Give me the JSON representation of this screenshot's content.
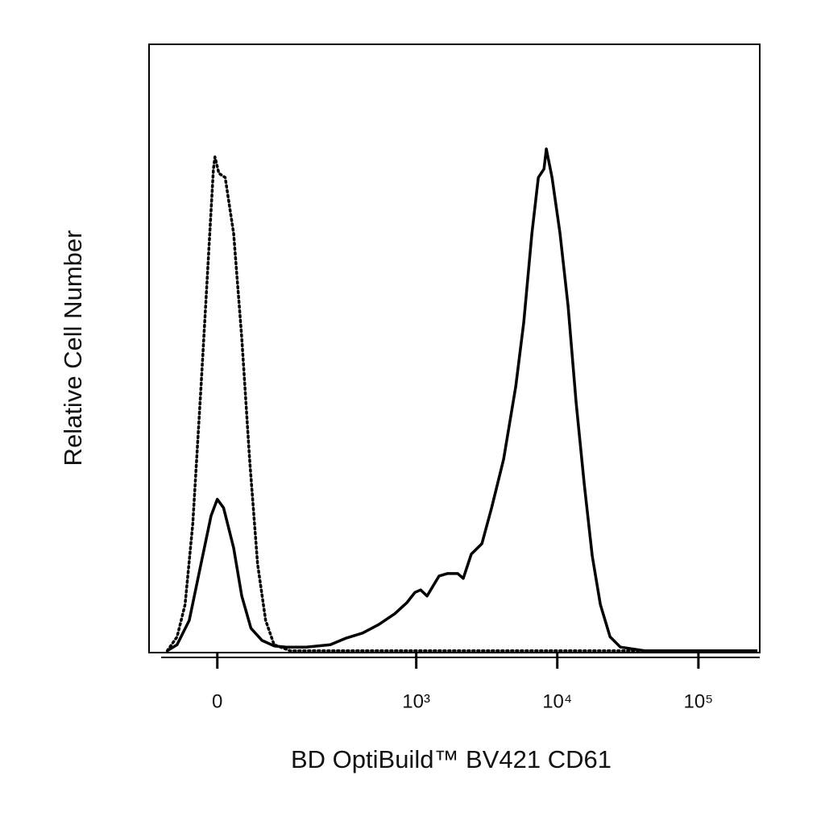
{
  "chart_data": {
    "type": "line",
    "xlabel": "BD OptiBuild™ BV421 CD61",
    "ylabel": "Relative Cell Number",
    "xscale": {
      "type": "asinh",
      "cofactor": 78
    },
    "xlim": [
      -106,
      272000
    ],
    "ylim": [
      0,
      100
    ],
    "xticks": [
      0,
      {
        "value": 1000,
        "label": "10³"
      },
      {
        "value": 10000,
        "label": "10⁴"
      },
      {
        "value": 100000,
        "label": "10⁵"
      }
    ],
    "series": [
      {
        "color": "#000000",
        "style": "solid",
        "x": [
          -71,
          -55,
          -37,
          -21,
          -8,
          0,
          8,
          21,
          32,
          45,
          62,
          83,
          107,
          157,
          240,
          316,
          413,
          539,
          704,
          858,
          979,
          1074,
          1193,
          1452,
          1660,
          1968,
          2156,
          2458,
          2922,
          3424,
          4168,
          5073,
          5788,
          6606,
          7340,
          8044,
          8365,
          9174,
          10460,
          11930,
          13600,
          15520,
          17700,
          20200,
          23650,
          28000,
          41650,
          261800
        ],
        "values": [
          0.3,
          1.3,
          5.3,
          14.6,
          22.5,
          25.2,
          23.8,
          17.2,
          9.3,
          4.0,
          2.0,
          1.1,
          0.9,
          0.9,
          1.3,
          2.4,
          3.2,
          4.6,
          6.4,
          8.2,
          9.9,
          10.3,
          9.3,
          12.6,
          13.0,
          13.0,
          12.2,
          16.2,
          17.9,
          23.8,
          31.8,
          43.7,
          54.3,
          68.9,
          78.1,
          79.5,
          82.8,
          78.1,
          68.9,
          57.0,
          41.1,
          27.8,
          15.9,
          7.9,
          2.6,
          0.9,
          0.3,
          0.3
        ]
      },
      {
        "color": "#000000",
        "style": "dotted",
        "x": [
          -71,
          -55,
          -43,
          -32,
          -21,
          -12,
          -5,
          -3,
          2,
          10,
          21,
          32,
          43,
          55,
          68,
          83,
          116,
          261800
        ],
        "values": [
          0.3,
          2.6,
          7.9,
          21.2,
          43.7,
          63.6,
          79.5,
          81.5,
          78.8,
          78.1,
          68.9,
          51.7,
          31.8,
          14.6,
          5.3,
          1.3,
          0.3,
          0.3
        ]
      }
    ]
  }
}
